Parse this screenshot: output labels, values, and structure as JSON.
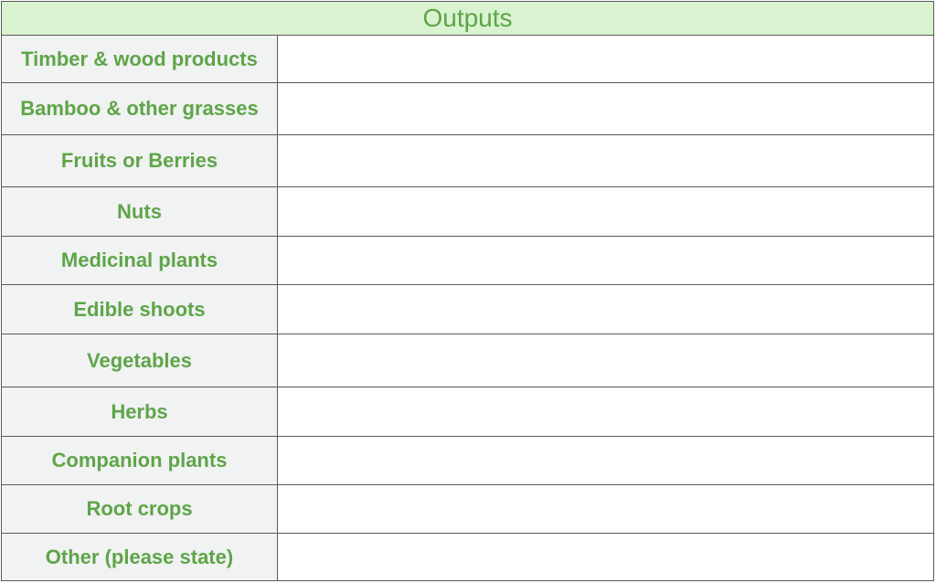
{
  "table": {
    "title": "Outputs",
    "rows": [
      {
        "label": "Timber & wood products",
        "value": ""
      },
      {
        "label": "Bamboo & other grasses",
        "value": ""
      },
      {
        "label": "Fruits or Berries",
        "value": ""
      },
      {
        "label": "Nuts",
        "value": ""
      },
      {
        "label": "Medicinal plants",
        "value": ""
      },
      {
        "label": "Edible shoots",
        "value": ""
      },
      {
        "label": "Vegetables",
        "value": ""
      },
      {
        "label": "Herbs",
        "value": ""
      },
      {
        "label": "Companion plants",
        "value": ""
      },
      {
        "label": "Root crops",
        "value": ""
      },
      {
        "label": "Other (please state)",
        "value": ""
      }
    ]
  },
  "colors": {
    "header_bg": "#d9f2d0",
    "label_bg": "#f1f2f2",
    "text_green": "#5ea548",
    "border": "#5a5a5a"
  }
}
